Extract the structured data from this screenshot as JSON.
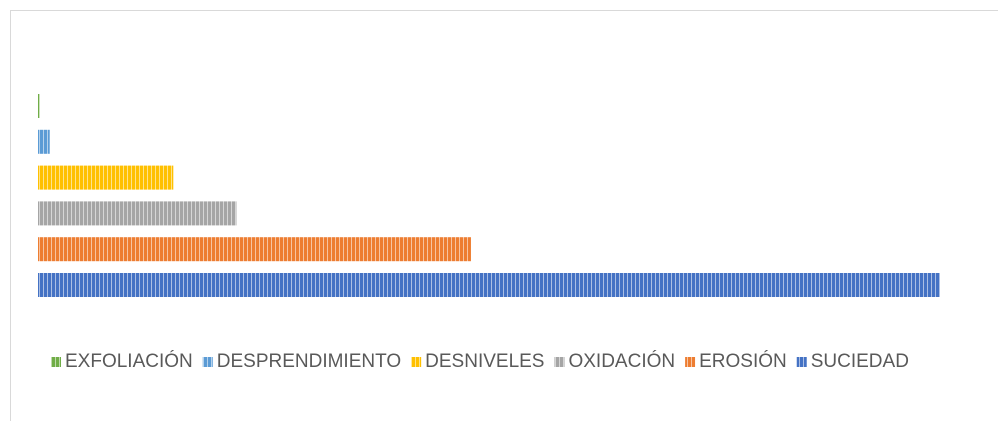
{
  "chart_data": {
    "type": "bar",
    "orientation": "horizontal",
    "xlim": [
      0,
      100
    ],
    "legend": "bottom",
    "series": [
      {
        "name": "EXFOLIACIÓN",
        "color": "#70ad47",
        "values": [
          0.2
        ]
      },
      {
        "name": "DESPRENDIMIENTO",
        "color": "#5b9bd5",
        "values": [
          1.3
        ]
      },
      {
        "name": "DESNIVELES",
        "color": "#ffc000",
        "values": [
          15
        ]
      },
      {
        "name": "OXIDACIÓN",
        "color": "#a5a5a5",
        "values": [
          22
        ]
      },
      {
        "name": "EROSIÓN",
        "color": "#ed7d31",
        "values": [
          48
        ]
      },
      {
        "name": "SUCIEDAD",
        "color": "#4472c4",
        "values": [
          100
        ]
      }
    ]
  }
}
